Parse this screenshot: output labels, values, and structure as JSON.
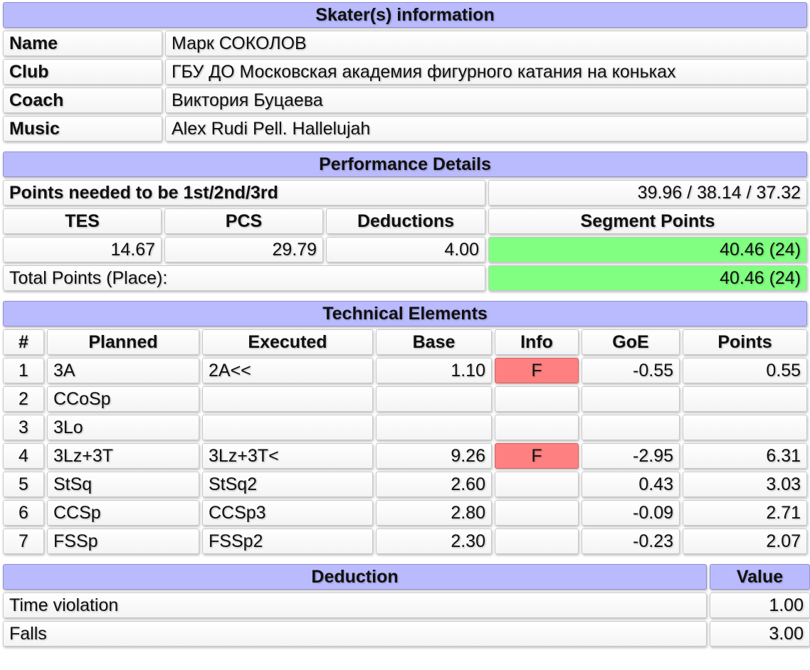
{
  "skater": {
    "title": "Skater(s) information",
    "rows": [
      [
        "Name",
        "Марк СОКОЛОВ"
      ],
      [
        "Club",
        "ГБУ ДО Московская академия фигурного катания на коньках"
      ],
      [
        "Coach",
        "Виктория Буцаева"
      ],
      [
        "Music",
        "Alex Rudi Pell. Hallelujah"
      ]
    ]
  },
  "performance": {
    "title": "Performance Details",
    "needed_label": "Points needed to be 1st/2nd/3rd",
    "needed_value": "39.96 / 38.14 / 37.32",
    "headers": [
      "TES",
      "PCS",
      "Deductions",
      "Segment Points"
    ],
    "values": [
      "14.67",
      "29.79",
      "4.00",
      "40.46 (24)"
    ],
    "total_label": "Total Points (Place):",
    "total_value": "40.46 (24)"
  },
  "elements": {
    "title": "Technical Elements",
    "headers": [
      "#",
      "Planned",
      "Executed",
      "Base",
      "Info",
      "GoE",
      "Points"
    ],
    "rows": [
      [
        "1",
        "3A",
        "2A<<",
        "1.10",
        "F",
        "-0.55",
        "0.55"
      ],
      [
        "2",
        "CCoSp",
        null,
        null,
        null,
        null,
        null
      ],
      [
        "3",
        "3Lo",
        null,
        null,
        null,
        null,
        null
      ],
      [
        "4",
        "3Lz+3T",
        "3Lz+3T<",
        "9.26",
        "F",
        "-2.95",
        "6.31"
      ],
      [
        "5",
        "StSq",
        "StSq2",
        "2.60",
        null,
        "0.43",
        "3.03"
      ],
      [
        "6",
        "CCSp",
        "CCSp3",
        "2.80",
        null,
        "-0.09",
        "2.71"
      ],
      [
        "7",
        "FSSp",
        "FSSp2",
        "2.30",
        null,
        "-0.23",
        "2.07"
      ]
    ]
  },
  "deductions": {
    "headers": [
      "Deduction",
      "Value"
    ],
    "rows": [
      [
        "Time violation",
        "1.00"
      ],
      [
        "Falls",
        "3.00"
      ]
    ]
  }
}
